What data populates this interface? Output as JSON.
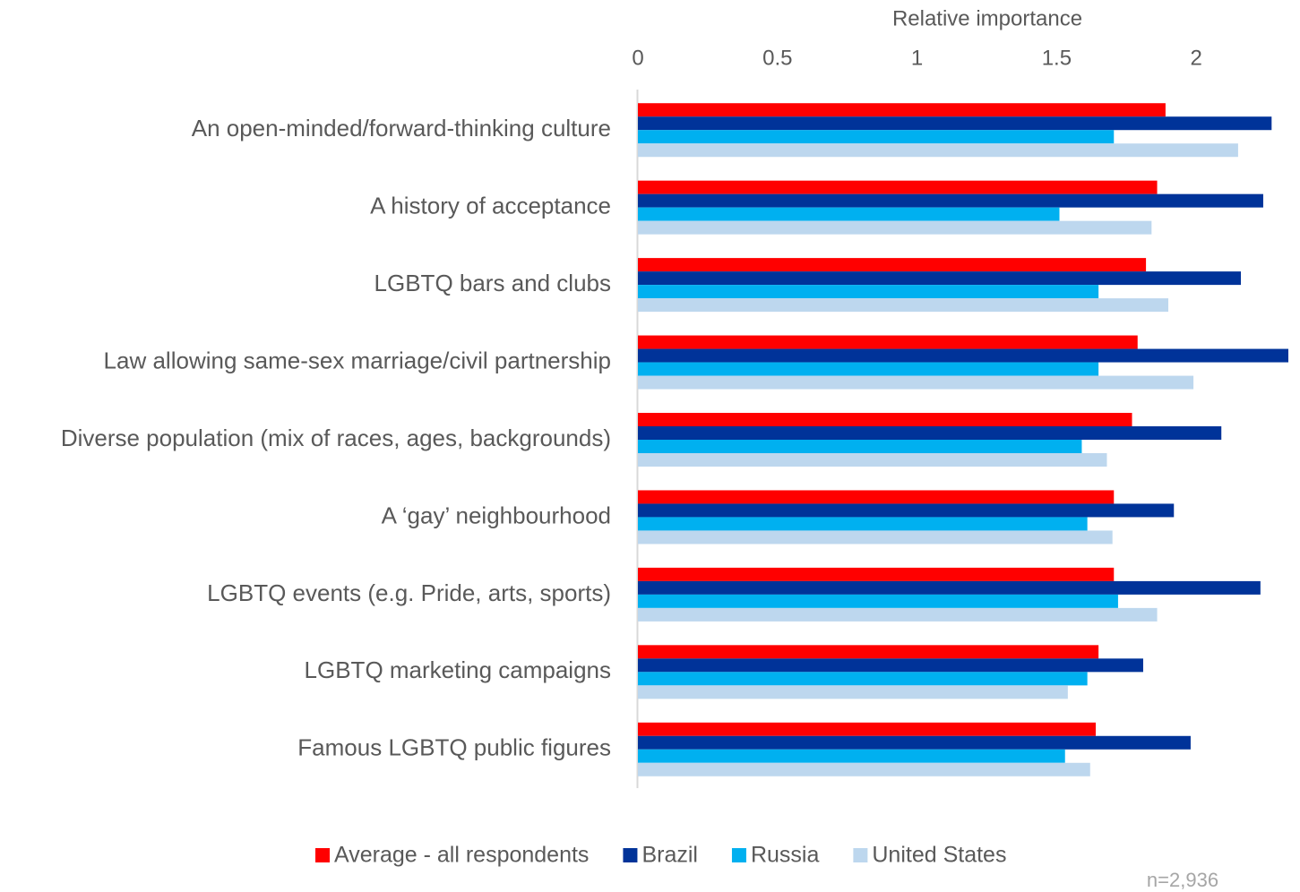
{
  "chart_data": {
    "type": "hbar",
    "xlabel": "Relative importance",
    "categories": [
      "An open-minded/forward-thinking culture",
      "A history of acceptance",
      "LGBTQ bars and clubs",
      "Law allowing same-sex marriage/civil partnership",
      "Diverse population (mix of races, ages, backgrounds)",
      "A ‘gay’ neighbourhood",
      "LGBTQ events (e.g. Pride, arts, sports)",
      "LGBTQ marketing campaigns",
      "Famous LGBTQ public figures"
    ],
    "series": [
      {
        "name": "Average - all respondents",
        "color": "#ff0000",
        "values": [
          1.89,
          1.86,
          1.82,
          1.79,
          1.77,
          1.705,
          1.705,
          1.65,
          1.64
        ]
      },
      {
        "name": "Brazil",
        "color": "#003399",
        "values": [
          2.27,
          2.24,
          2.16,
          2.33,
          2.09,
          1.92,
          2.23,
          1.81,
          1.98
        ]
      },
      {
        "name": "Russia",
        "color": "#00b0f0",
        "values": [
          1.705,
          1.51,
          1.65,
          1.65,
          1.59,
          1.61,
          1.72,
          1.61,
          1.53
        ]
      },
      {
        "name": "United States",
        "color": "#bdd7ee",
        "values": [
          2.15,
          1.84,
          1.9,
          1.99,
          1.68,
          1.7,
          1.86,
          1.54,
          1.62
        ]
      }
    ],
    "xlim": [
      0,
      2.33
    ],
    "xticks": [
      0,
      0.5,
      1,
      1.5,
      2
    ],
    "grid": false,
    "legend": "bottom",
    "note": "n=2,936"
  }
}
